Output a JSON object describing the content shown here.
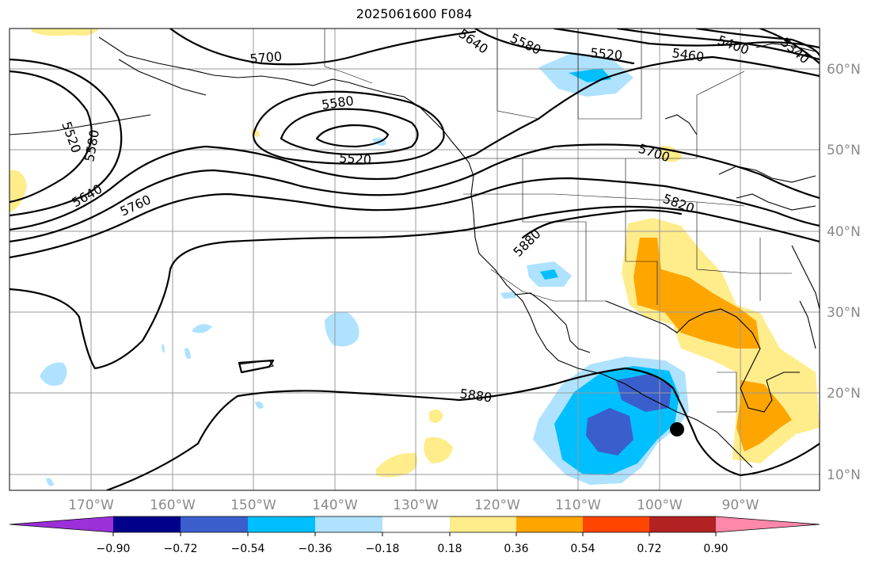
{
  "title": "2025061600 F084",
  "lon_ticks": [
    "170°W",
    "160°W",
    "150°W",
    "140°W",
    "130°W",
    "120°W",
    "110°W",
    "100°W",
    "90°W"
  ],
  "lat_ticks": [
    "60°N",
    "50°N",
    "40°N",
    "30°N",
    "20°N",
    "10°N"
  ],
  "contour_labels": [
    "5700",
    "5640",
    "5580",
    "5520",
    "5460",
    "5400",
    "5340",
    "5580",
    "5520",
    "5520",
    "5580",
    "5640",
    "5760",
    "5700",
    "5820",
    "5880",
    "5880"
  ],
  "colorbar": {
    "ticks": [
      "−0.90",
      "−0.72",
      "−0.54",
      "−0.36",
      "−0.18",
      "0.18",
      "0.36",
      "0.54",
      "0.72",
      "0.90"
    ],
    "colors": [
      "#9b30d9",
      "#00008b",
      "#3a5fcd",
      "#00bfff",
      "#aee2ff",
      "#ffffff",
      "#ffec8b",
      "#ffa500",
      "#ff4500",
      "#b22222",
      "#ff88aa"
    ]
  },
  "marker": "storm-center-dot"
}
